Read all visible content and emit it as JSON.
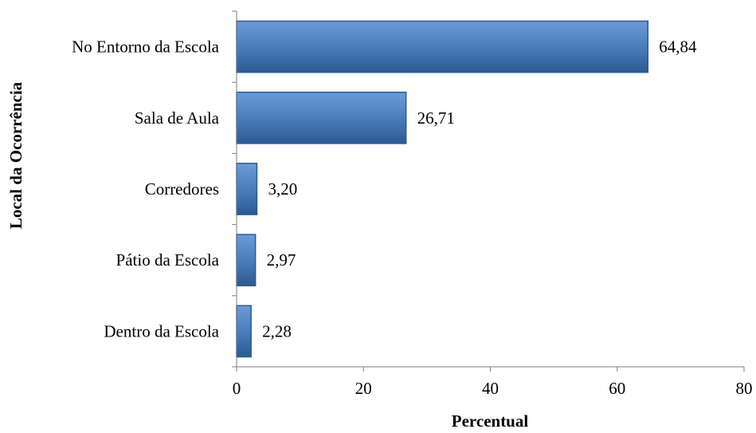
{
  "chart_data": {
    "type": "bar",
    "orientation": "horizontal",
    "categories": [
      "No Entorno da Escola",
      "Sala de Aula",
      "Corredores",
      "Pátio da Escola",
      "Dentro da Escola"
    ],
    "values": [
      64.84,
      26.71,
      3.2,
      2.97,
      2.28
    ],
    "data_labels": [
      "64,84",
      "26,71",
      "3,20",
      "2,97",
      "2,28"
    ],
    "xlabel": "Percentual",
    "ylabel": "Local da Ocorrência",
    "xlim": [
      0,
      80
    ],
    "xticks": [
      0,
      20,
      40,
      60,
      80
    ],
    "grid": false,
    "legend": "none",
    "bar_color": "#4a7ebb",
    "bar_color_dark": "#2c5a92",
    "bar_color_light": "#6d9bd6"
  }
}
